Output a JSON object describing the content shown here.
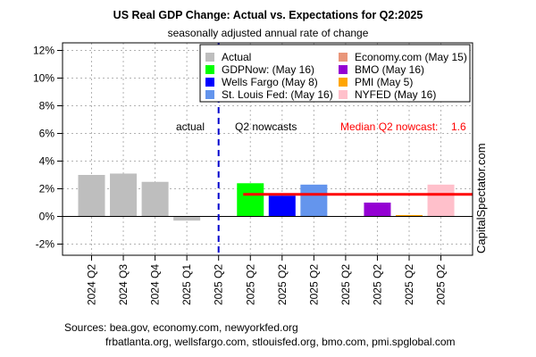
{
  "chart_data": {
    "type": "bar",
    "title": "US Real GDP Change: Actual vs. Expectations for Q2:2025",
    "subtitle": "seasonally adjusted annual rate of change",
    "ylim": [
      -3,
      12.9
    ],
    "y_ticks": [
      -2,
      0,
      2,
      4,
      6,
      8,
      10,
      12
    ],
    "y_tick_labels": [
      "-2%",
      "0%",
      "2%",
      "4%",
      "6%",
      "8%",
      "10%",
      "12%"
    ],
    "categories": [
      "2024 Q2",
      "2024 Q3",
      "2024 Q4",
      "2025 Q1",
      "2025 Q2",
      "2025 Q2",
      "2025 Q2",
      "2025 Q2",
      "2025 Q2",
      "2025 Q2",
      "2025 Q2",
      "2025 Q2"
    ],
    "bars": [
      {
        "label": "2024 Q2",
        "series": "Actual",
        "value": 3.0,
        "color": "#bebebe"
      },
      {
        "label": "2024 Q3",
        "series": "Actual",
        "value": 3.1,
        "color": "#bebebe"
      },
      {
        "label": "2024 Q4",
        "series": "Actual",
        "value": 2.5,
        "color": "#bebebe"
      },
      {
        "label": "2025 Q1",
        "series": "Actual",
        "value": -0.3,
        "color": "#bebebe"
      },
      {
        "label": "",
        "series": "",
        "value": null,
        "color": ""
      },
      {
        "label": "2025 Q2",
        "series": "GDPNow (May 16)",
        "value": 2.4,
        "color": "#00ff00"
      },
      {
        "label": "2025 Q2",
        "series": "Wells Fargo (May 8)",
        "value": 1.5,
        "color": "#0000ff"
      },
      {
        "label": "2025 Q2",
        "series": "St. Louis Fed: (May 16)",
        "value": 2.3,
        "color": "#6495ed"
      },
      {
        "label": "2025 Q2",
        "series": "Economy.com (May 15)",
        "value": null,
        "color": "#e9967a"
      },
      {
        "label": "2025 Q2",
        "series": "BMO (May 16)",
        "value": 1.0,
        "color": "#9400d3"
      },
      {
        "label": "2025 Q2",
        "series": "PMI (May 5)",
        "value": 0.1,
        "color": "#ffa500"
      },
      {
        "label": "2025 Q2",
        "series": "NYFED (May 16)",
        "value": 2.3,
        "color": "#ffc0cb"
      }
    ],
    "legend": [
      {
        "name": "Actual",
        "color": "#bebebe"
      },
      {
        "name": "Economy.com (May 15)",
        "color": "#e9967a"
      },
      {
        "name": "GDPNow: (May 16)",
        "color": "#00ff00"
      },
      {
        "name": "BMO (May 16)",
        "color": "#9400d3"
      },
      {
        "name": "Wells Fargo (May 8)",
        "color": "#0000ff"
      },
      {
        "name": "PMI (May 5)",
        "color": "#ffa500"
      },
      {
        "name": "St. Louis Fed: (May 16)",
        "color": "#6495ed"
      },
      {
        "name": "NYFED (May 16)",
        "color": "#ffc0cb"
      }
    ],
    "legend_position": "top-right",
    "median": {
      "value": 1.6,
      "color": "#ff0000",
      "label": "Median Q2 nowcast:",
      "value_label": "1.6"
    },
    "annotations": {
      "actual": "actual",
      "nowcasts": "Q2 nowcasts"
    },
    "grid": true,
    "colors": {
      "divider": "#0000cd",
      "median": "#ff0000"
    }
  },
  "watermark": "CapitalSpectator.com",
  "sources": {
    "line1": "Sources: bea.gov, economy.com, newyorkfed.org",
    "line2": "frbatlanta.org, wellsfargo.com, stlouisfed.org, bmo.com, pmi.spglobal.com"
  }
}
